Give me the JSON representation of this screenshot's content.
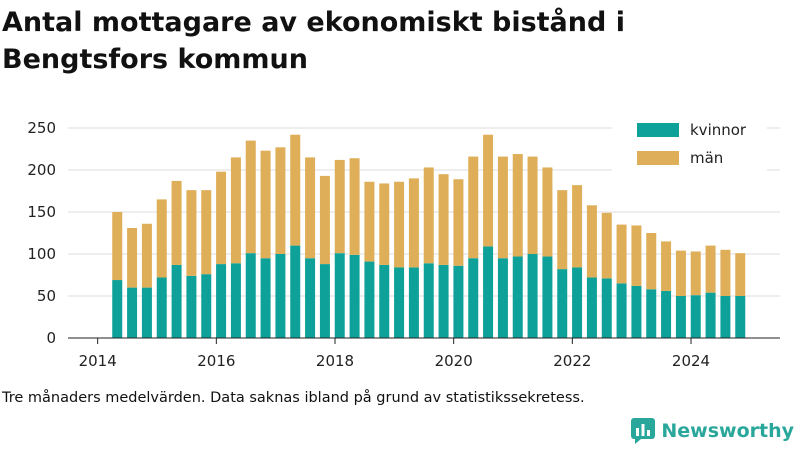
{
  "title": "Antal mottagare av ekonomiskt bistånd i Bengtsfors kommun",
  "footnote": "Tre månaders medelvärden. Data saknas ibland på grund av statistikssekretess.",
  "brand": "Newsworthy",
  "colors": {
    "kvinnor": "#0ea19a",
    "man": "#dfae58",
    "grid": "#dddddd",
    "brand": "#2aa79b"
  },
  "chart_data": {
    "type": "bar",
    "stacked": true,
    "title": "Antal mottagare av ekonomiskt bistånd i Bengtsfors kommun",
    "xlabel": "",
    "ylabel": "",
    "ylim": [
      0,
      250
    ],
    "yticks": [
      0,
      50,
      100,
      150,
      200,
      250
    ],
    "xticks": [
      2014,
      2016,
      2018,
      2020,
      2022,
      2024
    ],
    "xlim": [
      2013.5,
      2025.5
    ],
    "legend_position": "top-right",
    "x": [
      2014.33,
      2014.58,
      2014.83,
      2015.08,
      2015.33,
      2015.58,
      2015.83,
      2016.08,
      2016.33,
      2016.58,
      2016.83,
      2017.08,
      2017.33,
      2017.58,
      2017.83,
      2018.08,
      2018.33,
      2018.58,
      2018.83,
      2019.08,
      2019.33,
      2019.58,
      2019.83,
      2020.08,
      2020.33,
      2020.58,
      2020.83,
      2021.08,
      2021.33,
      2021.58,
      2021.83,
      2022.08,
      2022.33,
      2022.58,
      2022.83,
      2023.08,
      2023.33,
      2023.58,
      2023.83,
      2024.08,
      2024.33,
      2024.58,
      2024.83
    ],
    "series": [
      {
        "name": "kvinnor",
        "color": "#0ea19a",
        "values": [
          69,
          60,
          60,
          72,
          87,
          74,
          76,
          88,
          89,
          101,
          95,
          100,
          110,
          95,
          88,
          101,
          99,
          91,
          87,
          84,
          84,
          89,
          87,
          86,
          95,
          109,
          95,
          97,
          100,
          97,
          82,
          84,
          72,
          71,
          65,
          62,
          58,
          56,
          50,
          51,
          54,
          50,
          50
        ]
      },
      {
        "name": "män",
        "color": "#dfae58",
        "values": [
          81,
          71,
          76,
          93,
          100,
          102,
          100,
          110,
          126,
          134,
          128,
          127,
          132,
          120,
          105,
          111,
          115,
          95,
          97,
          102,
          106,
          114,
          108,
          103,
          121,
          133,
          121,
          122,
          116,
          106,
          94,
          98,
          86,
          78,
          70,
          72,
          67,
          59,
          54,
          52,
          56,
          55,
          51
        ]
      }
    ]
  }
}
